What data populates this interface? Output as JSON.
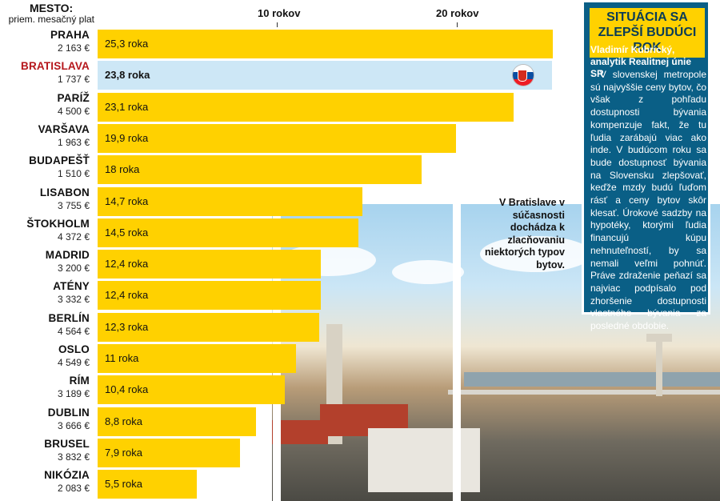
{
  "header": {
    "title": "MESTO:",
    "subtitle": "priem. mesačný plat"
  },
  "chart_data": {
    "type": "bar",
    "orientation": "horizontal",
    "unit": "roky",
    "xlim": [
      0,
      25.3
    ],
    "grid_labels": [
      {
        "value": 10,
        "label": "10 rokov"
      },
      {
        "value": 20,
        "label": "20 rokov"
      }
    ],
    "highlight": "BRATISLAVA",
    "colors": {
      "bar": "#ffd100",
      "highlight_row": "#cde7f6",
      "highlight_text": "#b5161b"
    },
    "rows": [
      {
        "city": "PRAHA",
        "salary": "2 163 €",
        "value": 25.3,
        "label": "25,3 roka"
      },
      {
        "city": "BRATISLAVA",
        "salary": "1 737 €",
        "value": 23.8,
        "label": "23,8 roka"
      },
      {
        "city": "PARÍŽ",
        "salary": "4 500 €",
        "value": 23.1,
        "label": "23,1 roka"
      },
      {
        "city": "VARŠAVA",
        "salary": "1 963 €",
        "value": 19.9,
        "label": "19,9 roka"
      },
      {
        "city": "BUDAPEŠŤ",
        "salary": "1 510 €",
        "value": 18,
        "label": "18 roka"
      },
      {
        "city": "LISABON",
        "salary": "3 755 €",
        "value": 14.7,
        "label": "14,7 roka"
      },
      {
        "city": "ŠTOKHOLM",
        "salary": "4 372 €",
        "value": 14.5,
        "label": "14,5 roka"
      },
      {
        "city": "MADRID",
        "salary": "3 200 €",
        "value": 12.4,
        "label": "12,4 roka"
      },
      {
        "city": "ATÉNY",
        "salary": "3 332 €",
        "value": 12.4,
        "label": "12,4 roka"
      },
      {
        "city": "BERLÍN",
        "salary": "4 564 €",
        "value": 12.3,
        "label": "12,3 roka"
      },
      {
        "city": "OSLO",
        "salary": "4 549 €",
        "value": 11,
        "label": "11 roka"
      },
      {
        "city": "RÍM",
        "salary": "3 189 €",
        "value": 10.4,
        "label": "10,4 roka"
      },
      {
        "city": "DUBLIN",
        "salary": "3 666 €",
        "value": 8.8,
        "label": "8,8 roka"
      },
      {
        "city": "BRUSEL",
        "salary": "3 832 €",
        "value": 7.9,
        "label": "7,9 roka"
      },
      {
        "city": "NIKÓZIA",
        "salary": "2 083 €",
        "value": 5.5,
        "label": "5,5 roka"
      }
    ]
  },
  "sidebar": {
    "title": "SITUÁCIA SA ZLEPŠÍ BUDÚCI ROK",
    "author": "Vladimír Kubrický, analytik Realitnej únie SR",
    "text": "- V slovenskej metropole sú najvyššie ceny bytov, čo však z pohľadu dostupnosti bývania kompenzuje fakt, že tu ľudia zarábajú viac ako inde. V budúcom roku sa bude dostupnosť bývania na Slovensku zlepšovať, keďže mzdy budú ľuďom rásť a ceny bytov skôr klesať. Úrokové sadzby na hypotéky, ktorými ľudia financujú kúpu nehnuteľností, by sa nemali veľmi pohnúť. Práve zdraženie peňazí sa najviac podpísalo pod zhoršenie dostupnosti vlastného bývania za posledné obdobie."
  },
  "callout": "V Bratislave v súčasnosti dochádza k zlacňovaniu niektorých typov bytov.",
  "icons": {
    "flag": "slovak-flag-icon"
  }
}
